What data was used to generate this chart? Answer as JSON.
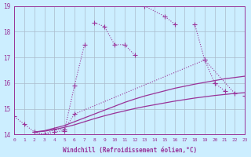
{
  "xlabel": "Windchill (Refroidissement éolien,°C)",
  "background_color": "#cceeff",
  "grid_color": "#aabbcc",
  "line_color": "#993399",
  "xmin": 0,
  "xmax": 23,
  "ymin": 14,
  "ymax": 19,
  "line1": {
    "x": [
      0,
      1,
      2,
      3,
      4,
      5,
      6,
      7,
      8,
      9,
      10,
      11,
      12,
      13,
      15,
      16,
      18,
      19,
      22,
      23
    ],
    "y": [
      14.7,
      14.4,
      14.1,
      14.0,
      14.1,
      14.15,
      15.9,
      17.5,
      18.35,
      18.2,
      17.5,
      17.5,
      17.1,
      19.0,
      18.6,
      18.3,
      18.3,
      16.9,
      15.6,
      15.5
    ]
  },
  "line2": {
    "x": [
      2,
      3,
      4,
      5,
      6,
      19,
      20,
      21
    ],
    "y": [
      14.1,
      14.0,
      14.2,
      14.2,
      14.8,
      16.9,
      16.0,
      15.7
    ]
  },
  "curve1_x": [
    2,
    3,
    4,
    5,
    6,
    7,
    8,
    9,
    10,
    11,
    12,
    13,
    14,
    15,
    16,
    17,
    18,
    19,
    20,
    21,
    22,
    23
  ],
  "curve1_y": [
    14.1,
    14.15,
    14.25,
    14.35,
    14.5,
    14.65,
    14.8,
    14.95,
    15.1,
    15.25,
    15.38,
    15.5,
    15.6,
    15.7,
    15.8,
    15.88,
    15.96,
    16.03,
    16.1,
    16.17,
    16.22,
    16.27
  ],
  "curve2_x": [
    2,
    3,
    4,
    5,
    6,
    7,
    8,
    9,
    10,
    11,
    12,
    13,
    14,
    15,
    16,
    17,
    18,
    19,
    20,
    21,
    22,
    23
  ],
  "curve2_y": [
    14.1,
    14.13,
    14.2,
    14.28,
    14.38,
    14.5,
    14.62,
    14.73,
    14.83,
    14.92,
    15.01,
    15.09,
    15.16,
    15.23,
    15.3,
    15.36,
    15.42,
    15.47,
    15.52,
    15.56,
    15.6,
    15.63
  ]
}
